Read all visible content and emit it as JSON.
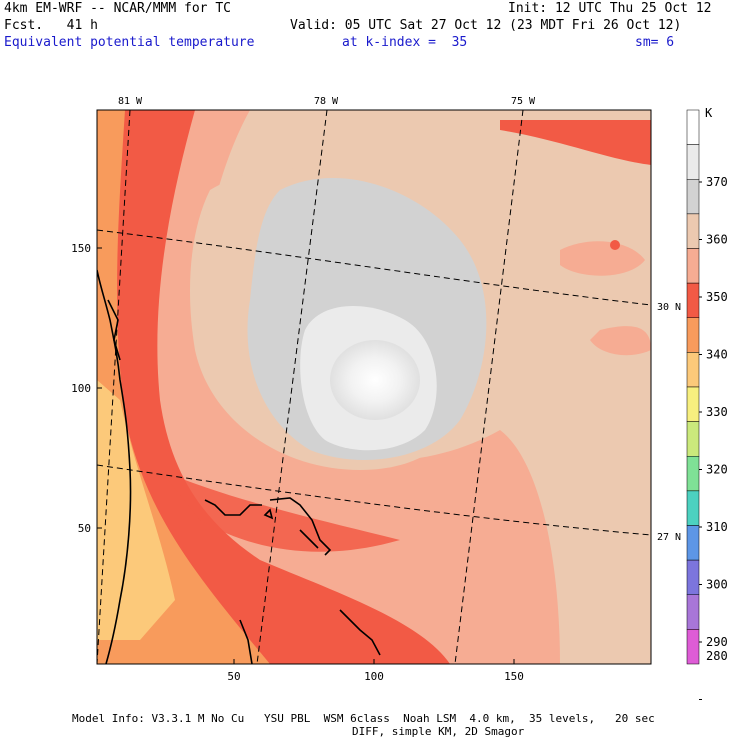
{
  "header": {
    "model": "4km EM-WRF -- NCAR/MMM for TC",
    "init": "Init: 12 UTC Thu 25 Oct 12",
    "fcst": "Fcst.   41 h",
    "valid": "Valid: 05 UTC Sat 27 Oct 12 (23 MDT Fri 26 Oct 12)",
    "field": "Equivalent potential temperature",
    "level": "at k-index =  35",
    "smooth": "sm= 6"
  },
  "map": {
    "lon_labels": [
      "81 W",
      "78 W",
      "75 W"
    ],
    "lat_labels": [
      "30 N",
      "27 N"
    ],
    "x_ticks": [
      "50",
      "100",
      "150"
    ],
    "y_ticks": [
      "150",
      "100",
      "50"
    ]
  },
  "colorbar": {
    "unit": "K",
    "levels": [
      "370",
      "360",
      "350",
      "340",
      "330",
      "320",
      "310",
      "300",
      "290",
      "280"
    ],
    "colors": [
      "#ffffff",
      "#ebebeb",
      "#d2d2d2",
      "#ecc9b0",
      "#f6ac93",
      "#f25a45",
      "#f89b5c",
      "#fcc97a",
      "#f7ef7f",
      "#cbe97c",
      "#7fe196",
      "#4cd1c0",
      "#5d96e6",
      "#7c75dd",
      "#a876d8",
      "#de5cd6"
    ]
  },
  "footer": {
    "line1": "Model Info: V3.3.1 M No Cu   YSU PBL  WSM 6class  Noah LSM  4.0 km,  35 levels,   20 sec",
    "line2": "DIFF, simple KM, 2D Smagor"
  }
}
